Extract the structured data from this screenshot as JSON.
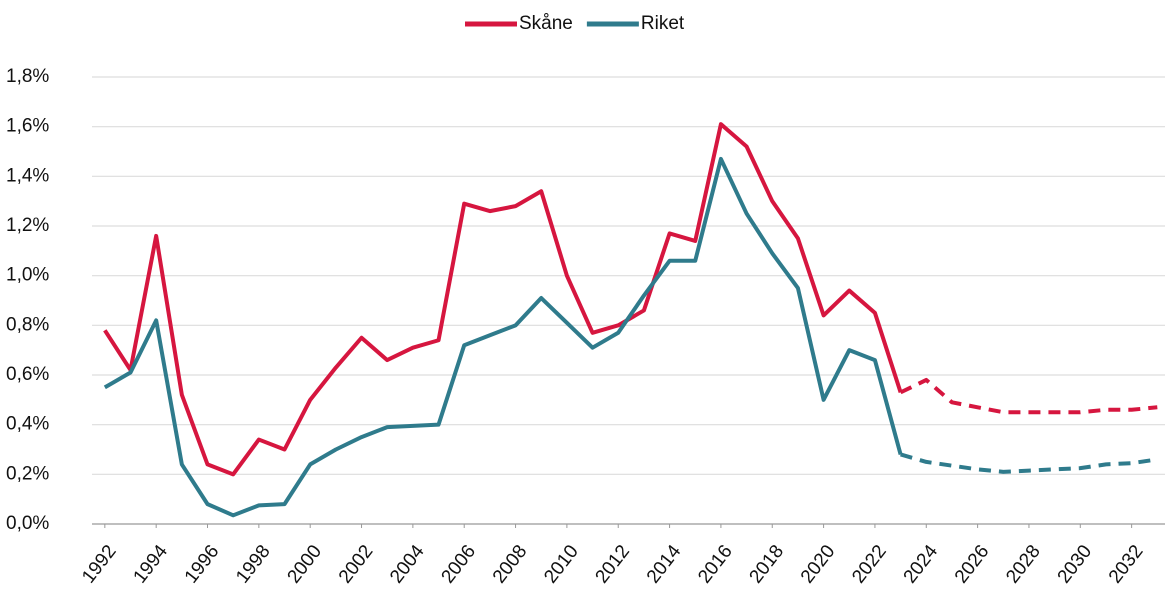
{
  "chart_data": {
    "type": "line",
    "x": [
      1992,
      1993,
      1994,
      1995,
      1996,
      1997,
      1998,
      1999,
      2000,
      2001,
      2002,
      2003,
      2004,
      2005,
      2006,
      2007,
      2008,
      2009,
      2010,
      2011,
      2012,
      2013,
      2014,
      2015,
      2016,
      2017,
      2018,
      2019,
      2020,
      2021,
      2022,
      2023,
      2024,
      2025,
      2026,
      2027,
      2028,
      2029,
      2030,
      2031,
      2032,
      2033
    ],
    "series": [
      {
        "name": "Skåne",
        "color": "#d6163f",
        "values": [
          0.78,
          0.62,
          1.16,
          0.52,
          0.24,
          0.2,
          0.34,
          0.3,
          0.5,
          0.63,
          0.75,
          0.66,
          0.71,
          0.74,
          1.29,
          1.26,
          1.28,
          1.34,
          1.0,
          0.77,
          0.8,
          0.86,
          1.17,
          1.14,
          1.61,
          1.52,
          1.3,
          1.15,
          0.84,
          0.94,
          0.85,
          0.53,
          0.58,
          0.49,
          0.47,
          0.45,
          0.45,
          0.45,
          0.45,
          0.46,
          0.46,
          0.47
        ]
      },
      {
        "name": "Riket",
        "color": "#2f7b8c",
        "values": [
          0.55,
          0.61,
          0.82,
          0.24,
          0.08,
          0.035,
          0.075,
          0.08,
          0.24,
          0.3,
          0.35,
          0.39,
          0.395,
          0.4,
          0.72,
          0.76,
          0.8,
          0.91,
          0.81,
          0.71,
          0.77,
          0.92,
          1.06,
          1.06,
          1.47,
          1.25,
          1.09,
          0.95,
          0.5,
          0.7,
          0.66,
          0.28,
          0.25,
          0.235,
          0.22,
          0.21,
          0.215,
          0.22,
          0.225,
          0.24,
          0.245,
          0.26
        ]
      }
    ],
    "forecast_start": 2024,
    "xlim": [
      1991.5,
      2033.3
    ],
    "xticks": [
      1992,
      1994,
      1996,
      1998,
      2000,
      2002,
      2004,
      2006,
      2008,
      2010,
      2012,
      2014,
      2016,
      2018,
      2020,
      2022,
      2024,
      2026,
      2028,
      2030,
      2032
    ],
    "ylim": [
      0,
      1.8
    ],
    "yticks": [
      {
        "value": 0,
        "label": "0,0%"
      },
      {
        "value": 0.2,
        "label": "0,2%"
      },
      {
        "value": 0.4,
        "label": "0,4%"
      },
      {
        "value": 0.6,
        "label": "0,6%"
      },
      {
        "value": 0.8,
        "label": "0,8%"
      },
      {
        "value": 1.0,
        "label": "1,0%"
      },
      {
        "value": 1.2,
        "label": "1,2%"
      },
      {
        "value": 1.4,
        "label": "1,4%"
      },
      {
        "value": 1.6,
        "label": "1,6%"
      },
      {
        "value": 1.8,
        "label": "1,8%"
      }
    ],
    "grid": true,
    "legend": "top"
  }
}
